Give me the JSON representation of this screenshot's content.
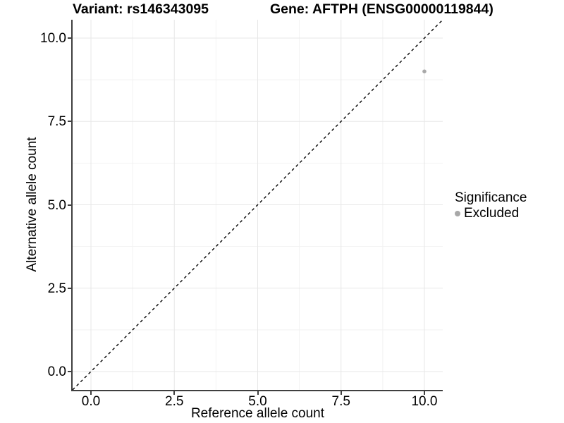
{
  "titles": {
    "variant": "Variant: rs146343095",
    "gene": "Gene: AFTPH (ENSG00000119844)"
  },
  "axes": {
    "x": {
      "label": "Reference allele count"
    },
    "y": {
      "label": "Alternative allele count"
    }
  },
  "legend": {
    "title": "Significance",
    "items": [
      {
        "label": "Excluded",
        "color": "#a8a8a8"
      }
    ]
  },
  "colors": {
    "axis_line": "#3f3f3f",
    "grid_major": "#e7e7e7",
    "grid_minor": "#f2f2f2",
    "reference_line": "#000000",
    "point": "#a8a8a8",
    "background": "#ffffff"
  },
  "chart_data": {
    "type": "scatter",
    "title": "Variant: rs146343095    Gene: AFTPH (ENSG00000119844)",
    "xlabel": "Reference allele count",
    "ylabel": "Alternative allele count",
    "xlim": [
      -0.55,
      10.55
    ],
    "ylim": [
      -0.55,
      10.55
    ],
    "x_ticks": [
      0,
      2.5,
      5,
      7.5,
      10
    ],
    "y_ticks": [
      0,
      2.5,
      5,
      7.5,
      10
    ],
    "x_tick_labels": [
      "0.0",
      "2.5",
      "5.0",
      "7.5",
      "10.0"
    ],
    "y_tick_labels": [
      "0.0",
      "2.5",
      "5.0",
      "7.5",
      "10.0"
    ],
    "grid": {
      "major": true,
      "minor": true
    },
    "reference_line": {
      "type": "identity",
      "slope": 1,
      "intercept": 0,
      "style": "dashed"
    },
    "series": [
      {
        "name": "Excluded",
        "color": "#a8a8a8",
        "points": [
          {
            "x": 10,
            "y": 9
          }
        ]
      }
    ],
    "legend": {
      "title": "Significance",
      "position": "right",
      "entries": [
        "Excluded"
      ]
    }
  }
}
